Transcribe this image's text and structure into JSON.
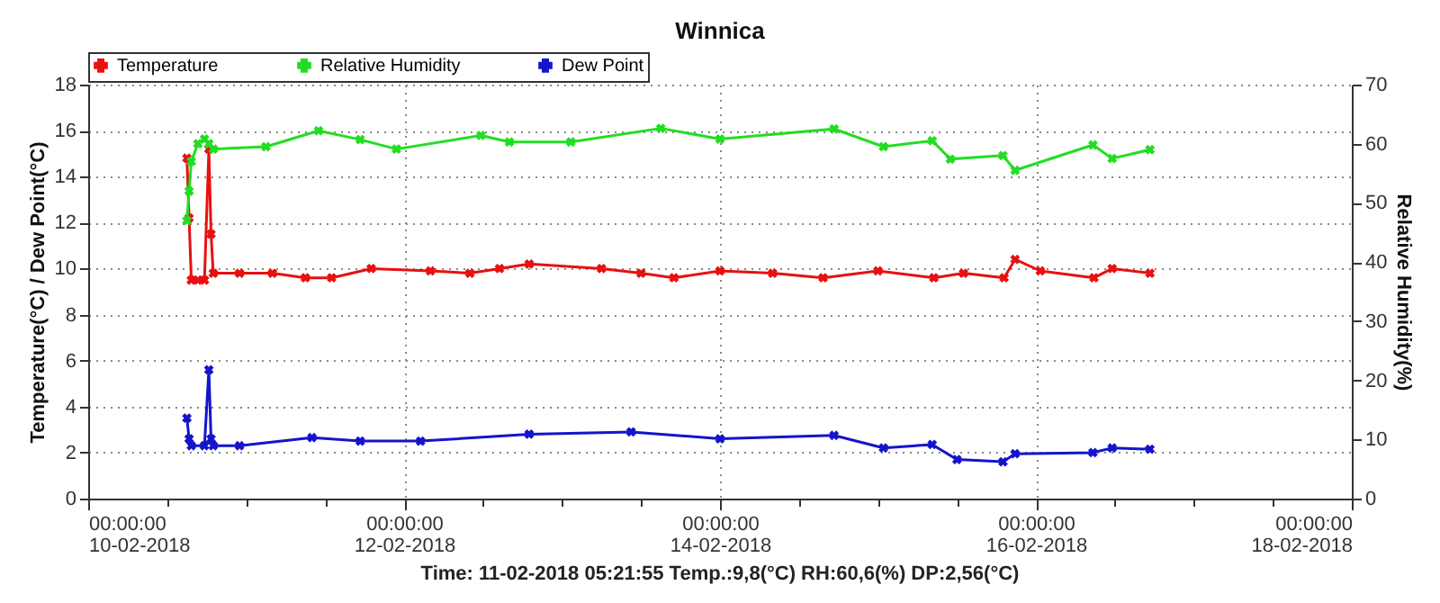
{
  "chart_data": {
    "type": "line",
    "title": "Winnica",
    "ylabel": "Temperature(°C) / Dew Point(°C)",
    "y2label": "Relative Humidity(%)",
    "annotations": [
      "Time: 11-02-2018 05:21:55 Temp.:9,8(°C) RH:60,6(%) DP:2,56(°C)"
    ],
    "xlim": [
      "2018-02-10T00:00",
      "2018-02-18T00:00"
    ],
    "xticks": [
      {
        "value": "2018-02-10T00:00",
        "label": "00:00:00\n10-02-2018"
      },
      {
        "value": "2018-02-10T12:00",
        "label": null
      },
      {
        "value": "2018-02-11T00:00",
        "label": null
      },
      {
        "value": "2018-02-11T12:00",
        "label": null
      },
      {
        "value": "2018-02-12T00:00",
        "label": "00:00:00\n12-02-2018"
      },
      {
        "value": "2018-02-12T12:00",
        "label": null
      },
      {
        "value": "2018-02-13T00:00",
        "label": null
      },
      {
        "value": "2018-02-13T12:00",
        "label": null
      },
      {
        "value": "2018-02-14T00:00",
        "label": "00:00:00\n14-02-2018"
      },
      {
        "value": "2018-02-14T12:00",
        "label": null
      },
      {
        "value": "2018-02-15T00:00",
        "label": null
      },
      {
        "value": "2018-02-15T12:00",
        "label": null
      },
      {
        "value": "2018-02-16T00:00",
        "label": "00:00:00\n16-02-2018"
      },
      {
        "value": "2018-02-16T12:00",
        "label": null
      },
      {
        "value": "2018-02-17T00:00",
        "label": null
      },
      {
        "value": "2018-02-17T12:00",
        "label": null
      },
      {
        "value": "2018-02-18T00:00",
        "label": "00:00:00\n18-02-2018"
      }
    ],
    "ylim": [
      0,
      18
    ],
    "yticks": [
      0,
      2,
      4,
      6,
      8,
      10,
      12,
      14,
      16,
      18
    ],
    "y2lim": [
      0,
      70
    ],
    "y2ticks": [
      0,
      10,
      20,
      30,
      40,
      50,
      60,
      70
    ],
    "grid": true,
    "legend": "top left",
    "marker": "cross",
    "series": [
      {
        "name": "Temperature",
        "color": "#e81010",
        "x": [
          "2018-02-10T15:00",
          "2018-02-10T15:20",
          "2018-02-10T15:40",
          "2018-02-10T16:40",
          "2018-02-10T17:40",
          "2018-02-10T18:20",
          "2018-02-10T18:40",
          "2018-02-10T19:00",
          "2018-02-10T23:00",
          "2018-02-11T04:00",
          "2018-02-11T09:00",
          "2018-02-11T13:00",
          "2018-02-11T19:00",
          "2018-02-12T04:00",
          "2018-02-12T10:00",
          "2018-02-12T14:30",
          "2018-02-12T19:00",
          "2018-02-13T06:00",
          "2018-02-13T12:00",
          "2018-02-13T17:00",
          "2018-02-14T00:00",
          "2018-02-14T08:00",
          "2018-02-14T15:40",
          "2018-02-15T00:00",
          "2018-02-15T08:30",
          "2018-02-15T13:00",
          "2018-02-15T19:10",
          "2018-02-15T20:50",
          "2018-02-16T00:40",
          "2018-02-16T08:50",
          "2018-02-16T11:35",
          "2018-02-16T17:20"
        ],
        "values": [
          14.8,
          12.2,
          9.5,
          9.5,
          9.5,
          15.2,
          11.5,
          9.8,
          9.8,
          9.8,
          9.6,
          9.6,
          10.0,
          9.9,
          9.8,
          10.0,
          10.2,
          10.0,
          9.8,
          9.6,
          9.9,
          9.8,
          9.6,
          9.9,
          9.6,
          9.8,
          9.6,
          10.4,
          9.9,
          9.6,
          10.0,
          9.8
        ]
      },
      {
        "name": "Relative Humidity",
        "color": "#22dd22",
        "axis": "y2",
        "x": [
          "2018-02-10T15:00",
          "2018-02-10T15:20",
          "2018-02-10T15:40",
          "2018-02-10T16:40",
          "2018-02-10T17:40",
          "2018-02-10T18:20",
          "2018-02-10T19:00",
          "2018-02-11T03:00",
          "2018-02-11T11:00",
          "2018-02-11T17:20",
          "2018-02-11T22:50",
          "2018-02-12T11:40",
          "2018-02-12T16:00",
          "2018-02-13T01:20",
          "2018-02-13T15:00",
          "2018-02-14T00:00",
          "2018-02-14T17:20",
          "2018-02-15T00:50",
          "2018-02-15T08:15",
          "2018-02-15T11:00",
          "2018-02-15T19:00",
          "2018-02-15T20:50",
          "2018-02-16T08:40",
          "2018-02-16T11:35",
          "2018-02-16T17:20"
        ],
        "values": [
          47,
          52,
          57,
          60,
          60.8,
          60,
          59.1,
          59.5,
          62.2,
          60.7,
          59.1,
          61.4,
          60.3,
          60.3,
          62.6,
          60.8,
          62.5,
          59.5,
          60.5,
          57.4,
          58,
          55.5,
          59.8,
          57.5,
          59
        ]
      },
      {
        "name": "Dew Point",
        "color": "#1414cc",
        "x": [
          "2018-02-10T15:00",
          "2018-02-10T15:20",
          "2018-02-10T15:40",
          "2018-02-10T17:40",
          "2018-02-10T18:20",
          "2018-02-10T18:40",
          "2018-02-10T19:00",
          "2018-02-10T23:00",
          "2018-02-11T10:00",
          "2018-02-11T17:20",
          "2018-02-12T02:30",
          "2018-02-12T19:00",
          "2018-02-13T10:30",
          "2018-02-14T00:00",
          "2018-02-14T17:20",
          "2018-02-15T00:50",
          "2018-02-15T08:15",
          "2018-02-15T12:00",
          "2018-02-15T19:00",
          "2018-02-15T20:50",
          "2018-02-16T08:40",
          "2018-02-16T11:35",
          "2018-02-16T17:20"
        ],
        "values": [
          3.5,
          2.6,
          2.3,
          2.3,
          5.6,
          2.6,
          2.3,
          2.3,
          2.65,
          2.5,
          2.5,
          2.8,
          2.9,
          2.6,
          2.75,
          2.2,
          2.35,
          1.7,
          1.6,
          1.95,
          2.0,
          2.2,
          2.15
        ]
      }
    ]
  }
}
